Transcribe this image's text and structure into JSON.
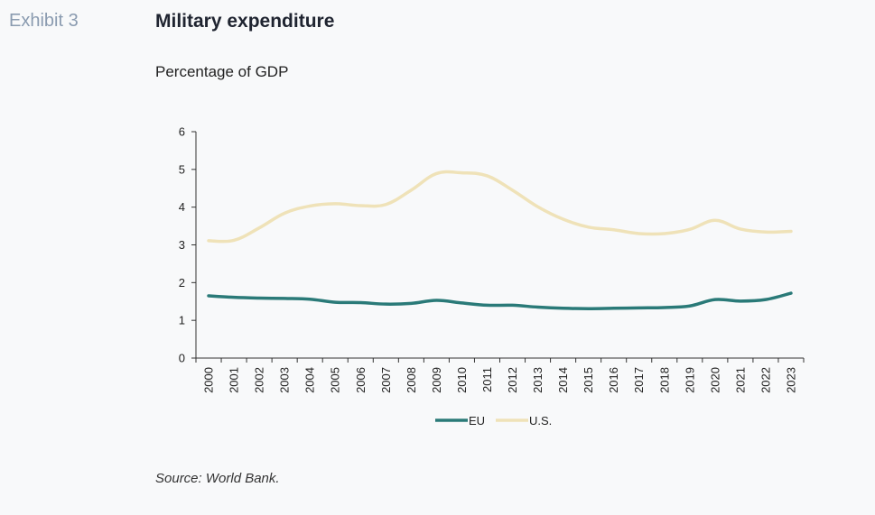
{
  "header": {
    "exhibit": "Exhibit 3",
    "title": "Military expenditure",
    "subtitle": "Percentage of GDP"
  },
  "footer": {
    "source": "Source: World Bank."
  },
  "colors": {
    "eu": "#2a7a78",
    "us": "#efe2b8",
    "axis": "#333333"
  },
  "chart_data": {
    "type": "line",
    "title": "Military expenditure",
    "subtitle": "Percentage of GDP",
    "xlabel": "",
    "ylabel": "",
    "ylim": [
      0,
      6
    ],
    "yticks": [
      0,
      1,
      2,
      3,
      4,
      5,
      6
    ],
    "grid": false,
    "legend_position": "bottom",
    "categories": [
      "2000",
      "2001",
      "2002",
      "2003",
      "2004",
      "2005",
      "2006",
      "2007",
      "2008",
      "2009",
      "2010",
      "2011",
      "2012",
      "2013",
      "2014",
      "2015",
      "2016",
      "2017",
      "2018",
      "2019",
      "2020",
      "2021",
      "2022",
      "2023"
    ],
    "series": [
      {
        "name": "EU",
        "color": "#2a7a78",
        "values": [
          1.65,
          1.61,
          1.59,
          1.58,
          1.56,
          1.48,
          1.47,
          1.43,
          1.45,
          1.53,
          1.46,
          1.4,
          1.4,
          1.35,
          1.32,
          1.31,
          1.32,
          1.33,
          1.34,
          1.38,
          1.55,
          1.51,
          1.55,
          1.72
        ]
      },
      {
        "name": "U.S.",
        "color": "#efe2b8",
        "values": [
          3.11,
          3.12,
          3.45,
          3.84,
          4.03,
          4.09,
          4.04,
          4.07,
          4.45,
          4.89,
          4.91,
          4.83,
          4.45,
          4.01,
          3.68,
          3.47,
          3.4,
          3.3,
          3.3,
          3.41,
          3.65,
          3.42,
          3.34,
          3.36
        ]
      }
    ]
  }
}
